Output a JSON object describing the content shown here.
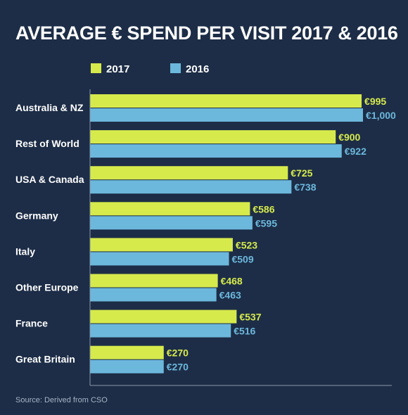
{
  "chart_data": {
    "type": "bar",
    "orientation": "horizontal",
    "title": "AVERAGE € SPEND PER VISIT 2017 & 2016",
    "categories": [
      "Australia & NZ",
      "Rest of World",
      "USA & Canada",
      "Germany",
      "Italy",
      "Other Europe",
      "France",
      "Great Britain"
    ],
    "series": [
      {
        "name": "2017",
        "color": "#d6ea4c",
        "values": [
          995,
          900,
          725,
          586,
          523,
          468,
          537,
          270
        ],
        "labels": [
          "€995",
          "€900",
          "€725",
          "€586",
          "€523",
          "€468",
          "€537",
          "€270"
        ]
      },
      {
        "name": "2016",
        "color": "#6cb8dc",
        "values": [
          1000,
          922,
          738,
          595,
          509,
          463,
          516,
          270
        ],
        "labels": [
          "€1,000",
          "€922",
          "€738",
          "€595",
          "€509",
          "€463",
          "€516",
          "€270"
        ]
      }
    ],
    "xlim": [
      0,
      1000
    ],
    "legend": "top-left",
    "grid": false,
    "source": "Source: Derived from CSO"
  },
  "colors": {
    "background": "#1d2d47",
    "axis": "#8c97a8"
  }
}
